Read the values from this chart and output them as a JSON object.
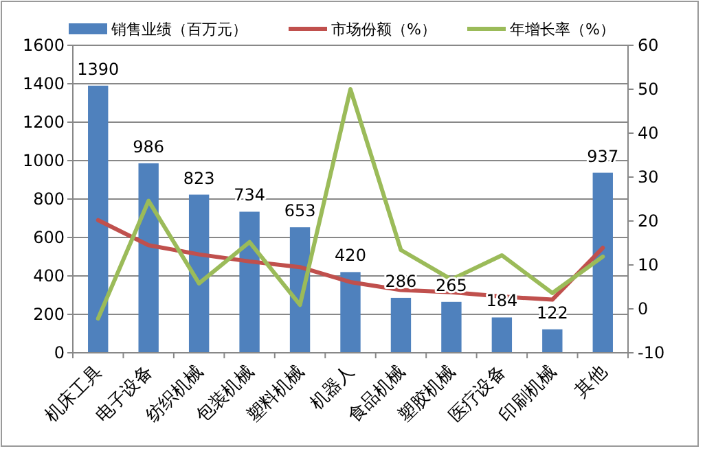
{
  "chart_data": {
    "type": "bar",
    "categories": [
      "机床工具",
      "电子设备",
      "纺织机械",
      "包装机械",
      "塑料机械",
      "机器人",
      "食品机械",
      "塑胶机械",
      "医疗设备",
      "印刷机械",
      "其他"
    ],
    "series": [
      {
        "name": "销售业绩（百万元）",
        "color": "#4f81bd",
        "values": [
          1390,
          986,
          823,
          734,
          653,
          420,
          286,
          265,
          184,
          122,
          937
        ],
        "value_labels": [
          "1390",
          "986",
          "823",
          "734",
          "653",
          "420",
          "286",
          "265",
          "184",
          "122",
          "937"
        ]
      },
      {
        "name": "市场份额（%）",
        "type": "line",
        "axis": "y2",
        "color": "#c0504d",
        "values": [
          20.2,
          14.5,
          12.4,
          10.8,
          9.5,
          6.1,
          4.3,
          3.8,
          2.8,
          2.1,
          13.9
        ]
      },
      {
        "name": "年增长率（%）",
        "type": "line",
        "axis": "y2",
        "color": "#9bbb59",
        "values": [
          -2.2,
          24.6,
          5.8,
          15.2,
          0.9,
          50,
          13.4,
          6.7,
          12.2,
          3.6,
          11.9
        ]
      }
    ],
    "ylim": [
      0,
      1600
    ],
    "yticks": [
      0,
      200,
      400,
      600,
      800,
      1000,
      1200,
      1400,
      1600
    ],
    "y2lim": [
      -10,
      60
    ],
    "y2ticks": [
      -10,
      0,
      10,
      20,
      30,
      40,
      50,
      60
    ],
    "grid": "y",
    "legend": "top",
    "marker": "none"
  }
}
